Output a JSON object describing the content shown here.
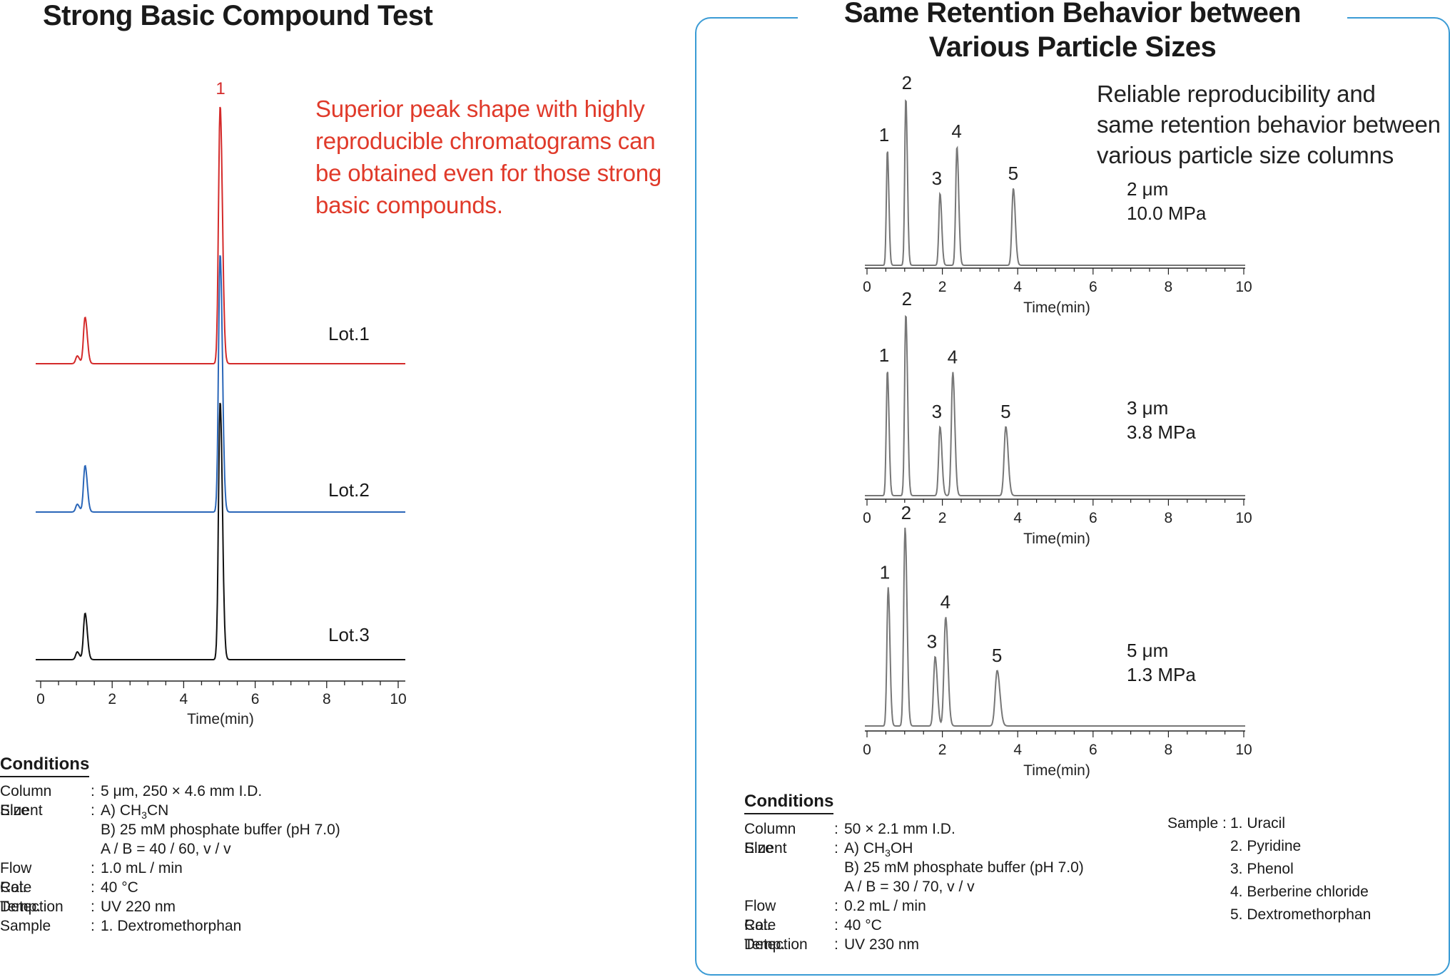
{
  "left": {
    "title": "Strong Basic Compound Test",
    "note_lines": [
      "Superior peak shape with highly",
      "reproducible chromatograms can",
      "be obtained even for those strong",
      "basic compounds."
    ],
    "conditions": {
      "heading": "Conditions",
      "rows": [
        {
          "label": "Column Size",
          "sep": ":",
          "value": "5 μm, 250 × 4.6 mm I.D."
        },
        {
          "label": "Eluent",
          "sep": ":",
          "value": "A) CH3CN"
        },
        {
          "label": "",
          "sep": "",
          "value": "B) 25 mM phosphate buffer (pH 7.0)"
        },
        {
          "label": "",
          "sep": "",
          "value": "A / B = 40 / 60, v / v"
        },
        {
          "label": "Flow Rate",
          "sep": ":",
          "value": "1.0 mL / min"
        },
        {
          "label": "Col. Temp.",
          "sep": ":",
          "value": "40 °C"
        },
        {
          "label": "Detection",
          "sep": ":",
          "value": "UV 220 nm"
        },
        {
          "label": "Sample",
          "sep": ":",
          "value": "1. Dextromethorphan"
        }
      ]
    }
  },
  "right": {
    "title_line1": "Same Retention Behavior between",
    "title_line2": "Various Particle Sizes",
    "desc_lines": [
      "Reliable reproducibility and",
      "same retention behavior between",
      "various particle size columns"
    ],
    "conditions": {
      "heading": "Conditions",
      "rows": [
        {
          "label": "Column Size",
          "sep": ":",
          "value": "50 × 2.1 mm I.D."
        },
        {
          "label": "Eluent",
          "sep": ":",
          "value": "A) CH3OH"
        },
        {
          "label": "",
          "sep": "",
          "value": "B) 25 mM phosphate buffer (pH 7.0)"
        },
        {
          "label": "",
          "sep": "",
          "value": "A / B = 30 / 70, v / v"
        },
        {
          "label": "Flow Rate",
          "sep": ":",
          "value": "0.2 mL / min"
        },
        {
          "label": "Col. Temp.",
          "sep": ":",
          "value": "40 °C"
        },
        {
          "label": "Detection",
          "sep": ":",
          "value": "UV 230 nm"
        }
      ]
    },
    "sample": {
      "label": "Sample :",
      "items": [
        "1. Uracil",
        "2. Pyridine",
        "3. Phenol",
        "4. Berberine chloride",
        "5. Dextromethorphan"
      ]
    }
  },
  "chart_data": [
    {
      "type": "line",
      "xlabel": "Time(min)",
      "xlim": [
        0,
        10
      ],
      "xticks": [
        0,
        2,
        4,
        6,
        8,
        10
      ],
      "series": [
        {
          "name": "Lot.1",
          "color": "#d42a2a",
          "peaks": [
            {
              "label": "1",
              "t": 5.05,
              "h": 1.0
            },
            {
              "label": "",
              "t": 1.22,
              "h": 0.18
            },
            {
              "label": "",
              "t": 1.0,
              "h": 0.03
            }
          ]
        },
        {
          "name": "Lot.2",
          "color": "#2a66b8",
          "peaks": [
            {
              "label": "",
              "t": 5.05,
              "h": 1.0
            },
            {
              "label": "",
              "t": 1.22,
              "h": 0.18
            },
            {
              "label": "",
              "t": 1.0,
              "h": 0.03
            }
          ]
        },
        {
          "name": "Lot.3",
          "color": "#111111",
          "peaks": [
            {
              "label": "",
              "t": 5.05,
              "h": 1.0
            },
            {
              "label": "",
              "t": 1.22,
              "h": 0.18
            },
            {
              "label": "",
              "t": 1.0,
              "h": 0.03
            }
          ]
        }
      ]
    },
    {
      "type": "line",
      "xlabel": "Time(min)",
      "xlim": [
        0,
        10
      ],
      "xticks": [
        0,
        2,
        4,
        6,
        8,
        10
      ],
      "panels": [
        {
          "particle": "2 μm",
          "pressure": "10.0 MPa",
          "peaks": [
            {
              "label": "1",
              "t": 0.53,
              "h": 0.69
            },
            {
              "label": "2",
              "t": 1.02,
              "h": 1.0
            },
            {
              "label": "3",
              "t": 1.93,
              "h": 0.43
            },
            {
              "label": "4",
              "t": 2.38,
              "h": 0.71
            },
            {
              "label": "5",
              "t": 3.88,
              "h": 0.46
            }
          ]
        },
        {
          "particle": "3 μm",
          "pressure": "3.8 MPa",
          "peaks": [
            {
              "label": "1",
              "t": 0.53,
              "h": 0.69
            },
            {
              "label": "2",
              "t": 1.02,
              "h": 1.0
            },
            {
              "label": "3",
              "t": 1.93,
              "h": 0.38
            },
            {
              "label": "4",
              "t": 2.27,
              "h": 0.68
            },
            {
              "label": "5",
              "t": 3.68,
              "h": 0.38
            }
          ]
        },
        {
          "particle": "5 μm",
          "pressure": "1.3 MPa",
          "peaks": [
            {
              "label": "1",
              "t": 0.55,
              "h": 0.7
            },
            {
              "label": "2",
              "t": 1.0,
              "h": 1.0
            },
            {
              "label": "3",
              "t": 1.8,
              "h": 0.35
            },
            {
              "label": "4",
              "t": 2.08,
              "h": 0.55
            },
            {
              "label": "5",
              "t": 3.45,
              "h": 0.28
            }
          ]
        }
      ]
    }
  ]
}
